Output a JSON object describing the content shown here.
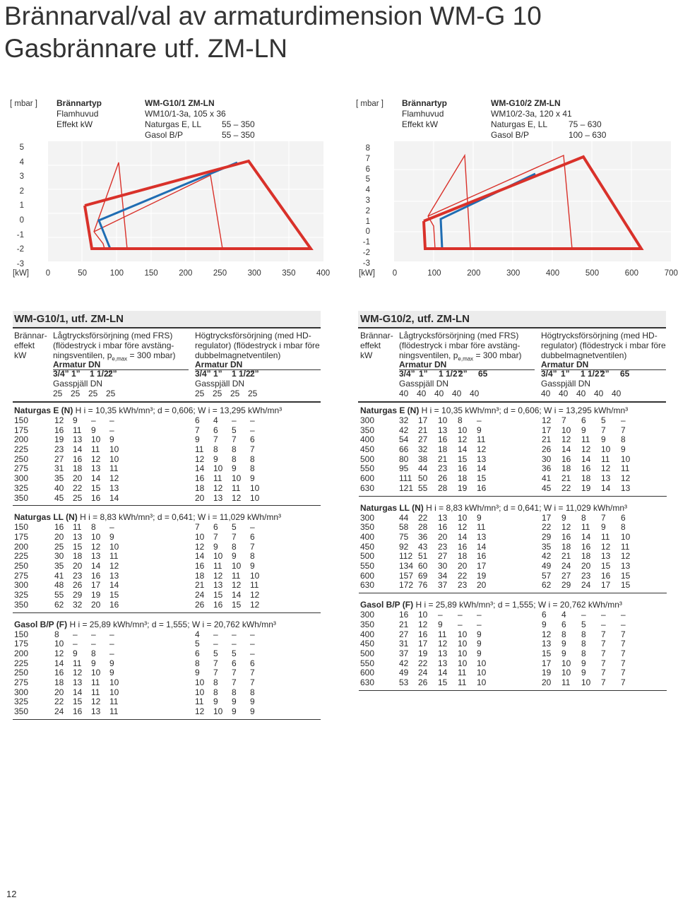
{
  "page": {
    "title_line1": "Brännarval/val av armaturdimension WM-G 10",
    "title_line2": "Gasbrännare utf. ZM-LN",
    "page_number": "12"
  },
  "chart1": {
    "yunit": "[ mbar ]",
    "xunit": "[kW]",
    "yticks": [
      "5",
      "4",
      "3",
      "2",
      "1",
      "0",
      "-1",
      "-2",
      "-3"
    ],
    "xticks": [
      "0",
      "50",
      "100",
      "150",
      "200",
      "250",
      "300",
      "350",
      "400"
    ],
    "info": {
      "l1": "Brännartyp",
      "v1": "WM-G10/1 ZM-LN",
      "l2": "Flamhuvud",
      "v2": "WM10/1-3a, 105 x 36",
      "l3": "Effekt kW",
      "v3a": "Naturgas E, LL",
      "v3b": "55 – 350",
      "v4a": "Gasol B/P",
      "v4b": "55 – 350"
    }
  },
  "chart2": {
    "yunit": "[ mbar ]",
    "xunit": "[kW]",
    "yticks": [
      "8",
      "7",
      "6",
      "5",
      "4",
      "3",
      "2",
      "1",
      "0",
      "-1",
      "-2",
      "-3"
    ],
    "xticks": [
      "0",
      "100",
      "200",
      "300",
      "400",
      "500",
      "600",
      "700"
    ],
    "info": {
      "l1": "Brännartyp",
      "v1": "WM-G10/2 ZM-LN",
      "l2": "Flamhuvud",
      "v2": "WM10/2-3a, 120 x 41",
      "l3": "Effekt kW",
      "v3a": "Naturgas E, LL",
      "v3b": "75 – 630",
      "v4a": "Gasol B/P",
      "v4b": "100 – 630"
    }
  },
  "left": {
    "title": "WM-G10/1, utf. ZM-LN",
    "hdr_c1": [
      "Brännar-",
      "effekt",
      "kW"
    ],
    "low_l1": "Lågtrycksförsörjning (med FRS)",
    "low_l2": "(flödestryck i mbar före avstäng-",
    "low_l3a": "ningsventilen, p",
    "low_l3sub": "e,max",
    "low_l3b": " = 300 mbar)",
    "high_l1": "Högtrycksförsörjning (med HD-",
    "high_l2": "regulator) (flödestryck i mbar före",
    "high_l3": "dubbelmagnetventilen)",
    "armatur": "Armatur DN",
    "dn_low": [
      "3/4”",
      "1”",
      "1 1/2”",
      "2”"
    ],
    "dn_high": [
      "3/4”",
      "1”",
      "1 1/2”",
      "2”"
    ],
    "gasspjall": "Gasspjäll DN",
    "gs_low": [
      "25",
      "25",
      "25",
      "25"
    ],
    "gs_high": [
      "25",
      "25",
      "25",
      "25"
    ],
    "gases": [
      {
        "name": "Naturgas E (N)",
        "spec": "H i = 10,35 kWh/mn³;  d = 0,606;  W i = 13,295 kWh/mn³",
        "rows": [
          [
            "150",
            "12",
            "9",
            "–",
            "–",
            "6",
            "4",
            "–",
            "–"
          ],
          [
            "175",
            "16",
            "11",
            "9",
            "–",
            "7",
            "6",
            "5",
            "–"
          ],
          [
            "200",
            "19",
            "13",
            "10",
            "9",
            "9",
            "7",
            "7",
            "6"
          ],
          [
            "225",
            "23",
            "14",
            "11",
            "10",
            "11",
            "8",
            "8",
            "7"
          ],
          [
            "250",
            "27",
            "16",
            "12",
            "10",
            "12",
            "9",
            "8",
            "8"
          ],
          [
            "275",
            "31",
            "18",
            "13",
            "11",
            "14",
            "10",
            "9",
            "8"
          ],
          [
            "300",
            "35",
            "20",
            "14",
            "12",
            "16",
            "11",
            "10",
            "9"
          ],
          [
            "325",
            "40",
            "22",
            "15",
            "13",
            "18",
            "12",
            "11",
            "10"
          ],
          [
            "350",
            "45",
            "25",
            "16",
            "14",
            "20",
            "13",
            "12",
            "10"
          ]
        ]
      },
      {
        "name": "Naturgas LL (N)",
        "spec": "H i = 8,83 kWh/mn³;  d = 0,641;  W i = 11,029 kWh/mn³",
        "rows": [
          [
            "150",
            "16",
            "11",
            "8",
            "–",
            "7",
            "6",
            "5",
            "–"
          ],
          [
            "175",
            "20",
            "13",
            "10",
            "9",
            "10",
            "7",
            "7",
            "6"
          ],
          [
            "200",
            "25",
            "15",
            "12",
            "10",
            "12",
            "9",
            "8",
            "7"
          ],
          [
            "225",
            "30",
            "18",
            "13",
            "11",
            "14",
            "10",
            "9",
            "8"
          ],
          [
            "250",
            "35",
            "20",
            "14",
            "12",
            "16",
            "11",
            "10",
            "9"
          ],
          [
            "275",
            "41",
            "23",
            "16",
            "13",
            "18",
            "12",
            "11",
            "10"
          ],
          [
            "300",
            "48",
            "26",
            "17",
            "14",
            "21",
            "13",
            "12",
            "11"
          ],
          [
            "325",
            "55",
            "29",
            "19",
            "15",
            "24",
            "15",
            "14",
            "12"
          ],
          [
            "350",
            "62",
            "32",
            "20",
            "16",
            "26",
            "16",
            "15",
            "12"
          ]
        ]
      },
      {
        "name": "Gasol B/P (F)",
        "spec": "H i = 25,89 kWh/mn³;  d = 1,555;  W i = 20,762 kWh/mn³",
        "rows": [
          [
            "150",
            "8",
            "–",
            "–",
            "–",
            "4",
            "–",
            "–",
            "–"
          ],
          [
            "175",
            "10",
            "–",
            "–",
            "–",
            "5",
            "–",
            "–",
            "–"
          ],
          [
            "200",
            "12",
            "9",
            "8",
            "–",
            "6",
            "5",
            "5",
            "–"
          ],
          [
            "225",
            "14",
            "11",
            "9",
            "9",
            "8",
            "7",
            "6",
            "6"
          ],
          [
            "250",
            "16",
            "12",
            "10",
            "9",
            "9",
            "7",
            "7",
            "7"
          ],
          [
            "275",
            "18",
            "13",
            "11",
            "10",
            "10",
            "8",
            "7",
            "7"
          ],
          [
            "300",
            "20",
            "14",
            "11",
            "10",
            "10",
            "8",
            "8",
            "8"
          ],
          [
            "325",
            "22",
            "15",
            "12",
            "11",
            "11",
            "9",
            "9",
            "9"
          ],
          [
            "350",
            "24",
            "16",
            "13",
            "11",
            "12",
            "10",
            "9",
            "9"
          ]
        ]
      }
    ]
  },
  "right": {
    "title": "WM-G10/2, utf. ZM-LN",
    "hdr_c1": [
      "Brännar-",
      "effekt",
      "kW"
    ],
    "low_l1": "Lågtrycksförsörjning (med FRS)",
    "low_l2": "(flödestryck i mbar före avstäng-",
    "low_l3a": "ningsventilen, p",
    "low_l3sub": "e,max",
    "low_l3b": " = 300 mbar)",
    "high_l1": "Högtrycksförsörjning (med HD-",
    "high_l2": "regulator) (flödestryck i mbar före",
    "high_l3": "dubbelmagnetventilen)",
    "armatur": "Armatur DN",
    "dn_low": [
      "3/4”",
      "1”",
      "1 1/2”",
      "2”",
      "65"
    ],
    "dn_high": [
      "3/4”",
      "1”",
      "1 1/2”",
      "2”",
      "65"
    ],
    "gasspjall": "Gasspjäll DN",
    "gs_low": [
      "40",
      "40",
      "40",
      "40",
      "40"
    ],
    "gs_high": [
      "40",
      "40",
      "40",
      "40",
      "40"
    ],
    "gases": [
      {
        "name": "Naturgas E (N)",
        "spec": "H i = 10,35 kWh/mn³;  d = 0,606;  W i = 13,295 kWh/mn³",
        "rows": [
          [
            "300",
            "32",
            "17",
            "10",
            "8",
            "–",
            "12",
            "7",
            "6",
            "5",
            "–"
          ],
          [
            "350",
            "42",
            "21",
            "13",
            "10",
            "9",
            "17",
            "10",
            "9",
            "7",
            "7"
          ],
          [
            "400",
            "54",
            "27",
            "16",
            "12",
            "11",
            "21",
            "12",
            "11",
            "9",
            "8"
          ],
          [
            "450",
            "66",
            "32",
            "18",
            "14",
            "12",
            "26",
            "14",
            "12",
            "10",
            "9"
          ],
          [
            "500",
            "80",
            "38",
            "21",
            "15",
            "13",
            "30",
            "16",
            "14",
            "11",
            "10"
          ],
          [
            "550",
            "95",
            "44",
            "23",
            "16",
            "14",
            "36",
            "18",
            "16",
            "12",
            "11"
          ],
          [
            "600",
            "111",
            "50",
            "26",
            "18",
            "15",
            "41",
            "21",
            "18",
            "13",
            "12"
          ],
          [
            "630",
            "121",
            "55",
            "28",
            "19",
            "16",
            "45",
            "22",
            "19",
            "14",
            "13"
          ]
        ]
      },
      {
        "name": "Naturgas LL (N)",
        "spec": "H i = 8,83 kWh/mn³;  d = 0,641;  W i = 11,029 kWh/mn³",
        "rows": [
          [
            "300",
            "44",
            "22",
            "13",
            "10",
            "9",
            "17",
            "9",
            "8",
            "7",
            "6"
          ],
          [
            "350",
            "58",
            "28",
            "16",
            "12",
            "11",
            "22",
            "12",
            "11",
            "9",
            "8"
          ],
          [
            "400",
            "75",
            "36",
            "20",
            "14",
            "13",
            "29",
            "16",
            "14",
            "11",
            "10"
          ],
          [
            "450",
            "92",
            "43",
            "23",
            "16",
            "14",
            "35",
            "18",
            "16",
            "12",
            "11"
          ],
          [
            "500",
            "112",
            "51",
            "27",
            "18",
            "16",
            "42",
            "21",
            "18",
            "13",
            "12"
          ],
          [
            "550",
            "134",
            "60",
            "30",
            "20",
            "17",
            "49",
            "24",
            "20",
            "15",
            "13"
          ],
          [
            "600",
            "157",
            "69",
            "34",
            "22",
            "19",
            "57",
            "27",
            "23",
            "16",
            "15"
          ],
          [
            "630",
            "172",
            "76",
            "37",
            "23",
            "20",
            "62",
            "29",
            "24",
            "17",
            "15"
          ]
        ]
      },
      {
        "name": "Gasol B/P (F)",
        "spec": "H i = 25,89 kWh/mn³;  d = 1,555;  W i = 20,762 kWh/mn³",
        "rows": [
          [
            "300",
            "16",
            "10",
            "–",
            "–",
            "–",
            "6",
            "4",
            "–",
            "–",
            "–"
          ],
          [
            "350",
            "21",
            "12",
            "9",
            "–",
            "–",
            "9",
            "6",
            "5",
            "–",
            "–"
          ],
          [
            "400",
            "27",
            "16",
            "11",
            "10",
            "9",
            "12",
            "8",
            "8",
            "7",
            "7"
          ],
          [
            "450",
            "31",
            "17",
            "12",
            "10",
            "9",
            "13",
            "9",
            "8",
            "7",
            "7"
          ],
          [
            "500",
            "37",
            "19",
            "13",
            "10",
            "9",
            "15",
            "9",
            "8",
            "7",
            "7"
          ],
          [
            "550",
            "42",
            "22",
            "13",
            "10",
            "10",
            "17",
            "10",
            "9",
            "7",
            "7"
          ],
          [
            "600",
            "49",
            "24",
            "14",
            "11",
            "10",
            "19",
            "10",
            "9",
            "7",
            "7"
          ],
          [
            "630",
            "53",
            "26",
            "15",
            "11",
            "10",
            "20",
            "11",
            "10",
            "7",
            "7"
          ]
        ]
      }
    ]
  },
  "colors": {
    "red": "#d9312a",
    "blue": "#1f6db3",
    "grid_bg": "#f3f3f3"
  }
}
